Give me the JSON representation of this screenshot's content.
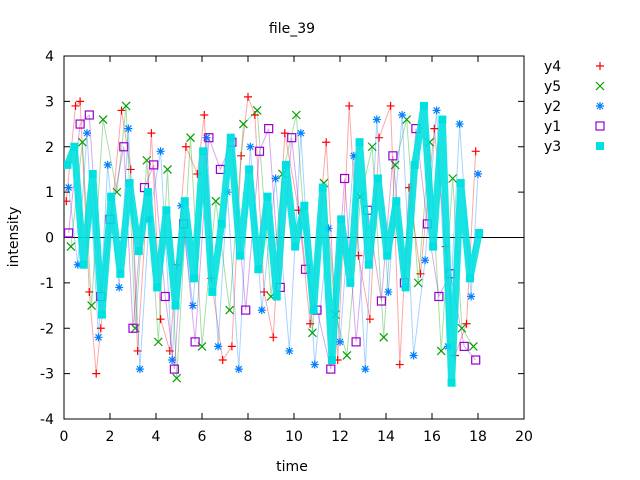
{
  "chart_data": {
    "type": "scatter",
    "title": "file_39",
    "xlabel": "time",
    "ylabel": "intensity",
    "xlim": [
      0,
      20
    ],
    "ylim": [
      -4,
      4
    ],
    "x_ticks": [
      0,
      2,
      4,
      6,
      8,
      10,
      12,
      14,
      16,
      18,
      20
    ],
    "y_ticks": [
      -4,
      -3,
      -2,
      -1,
      0,
      1,
      2,
      3,
      4
    ],
    "grid": false,
    "legend_position": "outside-right",
    "zero_line": true,
    "series": [
      {
        "name": "y4",
        "marker": "plus",
        "color": "#ff0000",
        "x": [
          0.1,
          0.5,
          0.7,
          1.1,
          1.4,
          1.6,
          2.5,
          2.9,
          3.2,
          3.8,
          4.2,
          4.6,
          4.9,
          5.3,
          5.8,
          6.1,
          6.4,
          6.9,
          7.3,
          7.7,
          8.0,
          8.3,
          8.7,
          9.1,
          9.6,
          10.2,
          10.7,
          11.4,
          11.9,
          12.4,
          12.8,
          13.3,
          13.7,
          14.2,
          14.6,
          15.0,
          15.5,
          16.1,
          16.6,
          17.0,
          17.5,
          17.9
        ],
        "values": [
          0.8,
          2.9,
          3.0,
          -1.2,
          -3.0,
          -2.0,
          2.8,
          1.5,
          -2.5,
          2.3,
          -1.8,
          -2.5,
          -0.6,
          2.0,
          1.4,
          2.7,
          -0.9,
          -2.7,
          -2.4,
          1.8,
          3.1,
          2.7,
          -1.2,
          -2.2,
          2.3,
          0.6,
          -1.9,
          2.1,
          -2.7,
          2.9,
          -0.4,
          -1.8,
          2.2,
          2.9,
          -2.8,
          1.1,
          -0.8,
          2.4,
          -0.2,
          -2.6,
          -1.9,
          1.9
        ]
      },
      {
        "name": "y5",
        "marker": "cross",
        "color": "#00a000",
        "x": [
          0.3,
          0.8,
          1.2,
          1.7,
          2.3,
          2.7,
          3.1,
          3.6,
          4.1,
          4.5,
          4.9,
          5.5,
          6.0,
          6.6,
          7.2,
          7.8,
          8.4,
          9.0,
          9.5,
          10.1,
          10.8,
          11.3,
          11.8,
          12.3,
          12.9,
          13.4,
          13.9,
          14.4,
          14.9,
          15.4,
          15.9,
          16.4,
          16.9,
          17.3,
          17.8
        ],
        "values": [
          -0.2,
          2.1,
          -1.5,
          2.6,
          1.0,
          2.9,
          -2.0,
          1.7,
          -2.3,
          1.5,
          -3.1,
          2.2,
          -2.4,
          0.8,
          -1.6,
          2.5,
          2.8,
          -1.3,
          1.4,
          2.7,
          -2.1,
          1.2,
          -1.7,
          -2.6,
          0.9,
          2.0,
          -2.2,
          1.6,
          2.6,
          -1.0,
          2.1,
          -2.5,
          1.3,
          -2.0,
          -2.4
        ]
      },
      {
        "name": "y2",
        "marker": "star",
        "color": "#0080ff",
        "x": [
          0.2,
          0.6,
          1.0,
          1.5,
          1.9,
          2.4,
          2.8,
          3.3,
          3.7,
          4.2,
          4.7,
          5.1,
          5.6,
          6.2,
          6.7,
          7.1,
          7.6,
          8.1,
          8.6,
          9.2,
          9.8,
          10.3,
          10.9,
          11.5,
          12.0,
          12.6,
          13.1,
          13.6,
          14.1,
          14.7,
          15.2,
          15.7,
          16.2,
          16.7,
          17.2,
          17.7,
          18.0
        ],
        "values": [
          1.1,
          -0.6,
          2.3,
          -2.2,
          1.6,
          -1.1,
          2.4,
          -2.9,
          0.4,
          1.9,
          -2.7,
          0.7,
          -1.5,
          2.2,
          -2.4,
          1.0,
          -2.9,
          2.0,
          -1.6,
          1.3,
          -2.5,
          2.3,
          -2.8,
          0.2,
          -2.3,
          1.8,
          -2.9,
          2.6,
          -1.2,
          2.7,
          -2.6,
          -0.5,
          2.8,
          -2.4,
          2.5,
          -1.3,
          1.4
        ]
      },
      {
        "name": "y1",
        "marker": "square-open",
        "color": "#9900cc",
        "x": [
          0.2,
          0.7,
          1.1,
          1.6,
          2.0,
          2.6,
          3.0,
          3.5,
          3.9,
          4.4,
          4.8,
          5.2,
          5.7,
          6.3,
          6.8,
          7.3,
          7.9,
          8.5,
          8.9,
          9.4,
          9.9,
          10.5,
          11.0,
          11.6,
          12.2,
          12.7,
          13.2,
          13.8,
          14.3,
          14.8,
          15.3,
          15.8,
          16.3,
          16.8,
          17.4,
          17.9
        ],
        "values": [
          0.1,
          2.5,
          2.7,
          -1.3,
          0.4,
          2.0,
          -2.0,
          1.1,
          1.6,
          -1.3,
          -2.9,
          0.3,
          -2.3,
          2.2,
          1.5,
          2.1,
          -1.6,
          1.9,
          2.4,
          -1.1,
          2.2,
          -0.7,
          -1.6,
          -2.9,
          1.3,
          -2.3,
          0.6,
          -1.4,
          1.8,
          -1.0,
          2.4,
          0.3,
          -1.3,
          -0.8,
          -2.4,
          -2.7
        ]
      },
      {
        "name": "y3",
        "marker": "square-filled",
        "color": "#00e0e0",
        "x": [
          0.15,
          0.45,
          0.85,
          1.25,
          1.65,
          2.05,
          2.45,
          2.85,
          3.25,
          3.65,
          4.05,
          4.45,
          4.85,
          5.25,
          5.65,
          6.05,
          6.45,
          6.85,
          7.25,
          7.65,
          8.05,
          8.45,
          8.85,
          9.25,
          9.65,
          10.05,
          10.45,
          10.85,
          11.25,
          11.65,
          12.05,
          12.45,
          12.85,
          13.25,
          13.65,
          14.05,
          14.45,
          14.85,
          15.25,
          15.65,
          16.05,
          16.45,
          16.85,
          17.25,
          17.65,
          18.05
        ],
        "values": [
          1.6,
          2.0,
          -0.6,
          1.4,
          -1.7,
          0.9,
          -0.8,
          1.2,
          -0.3,
          1.0,
          -1.1,
          0.6,
          -1.5,
          0.8,
          -0.9,
          1.9,
          -1.2,
          0.3,
          2.2,
          -0.4,
          1.5,
          -0.7,
          0.9,
          -1.3,
          1.6,
          -0.2,
          0.7,
          -1.6,
          1.1,
          -2.7,
          0.4,
          -1.0,
          2.1,
          -0.6,
          1.3,
          -0.4,
          0.8,
          -1.1,
          1.6,
          2.9,
          -0.2,
          2.6,
          -3.2,
          1.2,
          -0.9,
          0.1
        ]
      }
    ]
  }
}
